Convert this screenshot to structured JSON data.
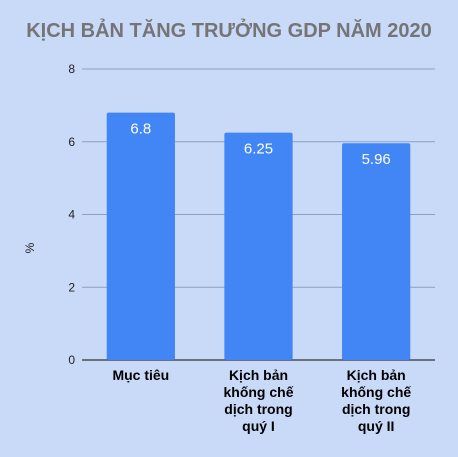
{
  "chart_data": {
    "type": "bar",
    "title": "KỊCH BẢN TĂNG TRƯỞNG GDP NĂM 2020",
    "xlabel": "",
    "ylabel": "%",
    "ylim": [
      0,
      8
    ],
    "yticks": [
      0,
      2,
      4,
      6,
      8
    ],
    "grid": true,
    "legend": "none",
    "categories": [
      [
        "Mục tiêu"
      ],
      [
        "Kịch bản",
        "khống chế",
        "dịch trong",
        "quý I"
      ],
      [
        "Kịch bản",
        "khống chế",
        "dịch trong",
        "quý II"
      ]
    ],
    "values": [
      6.8,
      6.25,
      5.96
    ],
    "data_labels": [
      "6.8",
      "6.25",
      "5.96"
    ],
    "colors": {
      "bar": "#4285f4",
      "background": "#c9daf8",
      "grid": "#8aa0c4",
      "axis": "#333333",
      "title": "#757575"
    }
  }
}
